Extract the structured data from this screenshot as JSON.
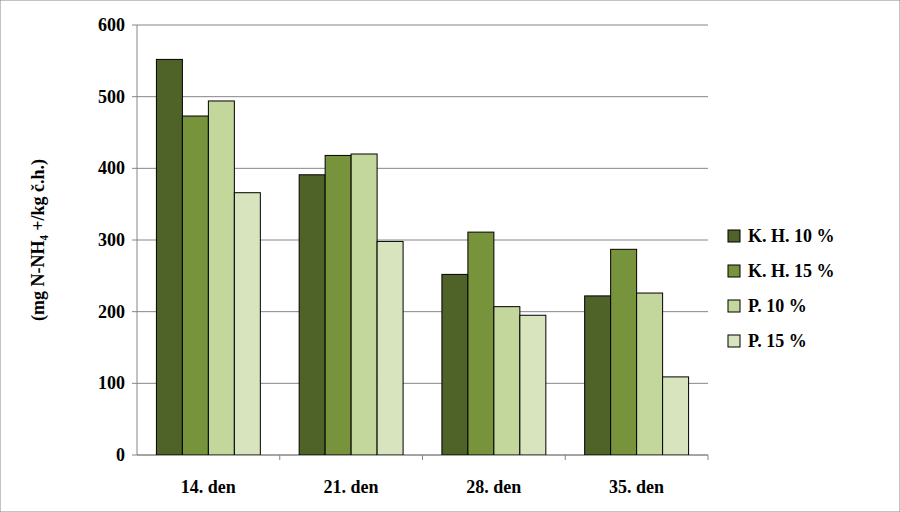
{
  "chart_data": {
    "type": "bar",
    "y_label": "(mg N-NH₄ +/kg č.h.)",
    "categories": [
      "14. den",
      "21. den",
      "28. den",
      "35. den"
    ],
    "series": [
      {
        "name": "K. H. 10 %",
        "color": "#4f6228",
        "values": [
          552,
          391,
          252,
          222
        ]
      },
      {
        "name": "K. H. 15 %",
        "color": "#77933c",
        "values": [
          473,
          418,
          311,
          287
        ]
      },
      {
        "name": "P. 10 %",
        "color": "#c3d69b",
        "values": [
          494,
          420,
          207,
          226
        ]
      },
      {
        "name": "P. 15 %",
        "color": "#d7e4bd",
        "values": [
          366,
          298,
          195,
          109
        ]
      }
    ],
    "ylim": [
      0,
      600
    ],
    "yticks": [
      0,
      100,
      200,
      300,
      400,
      500,
      600
    ],
    "grid": true,
    "legend": "right"
  }
}
